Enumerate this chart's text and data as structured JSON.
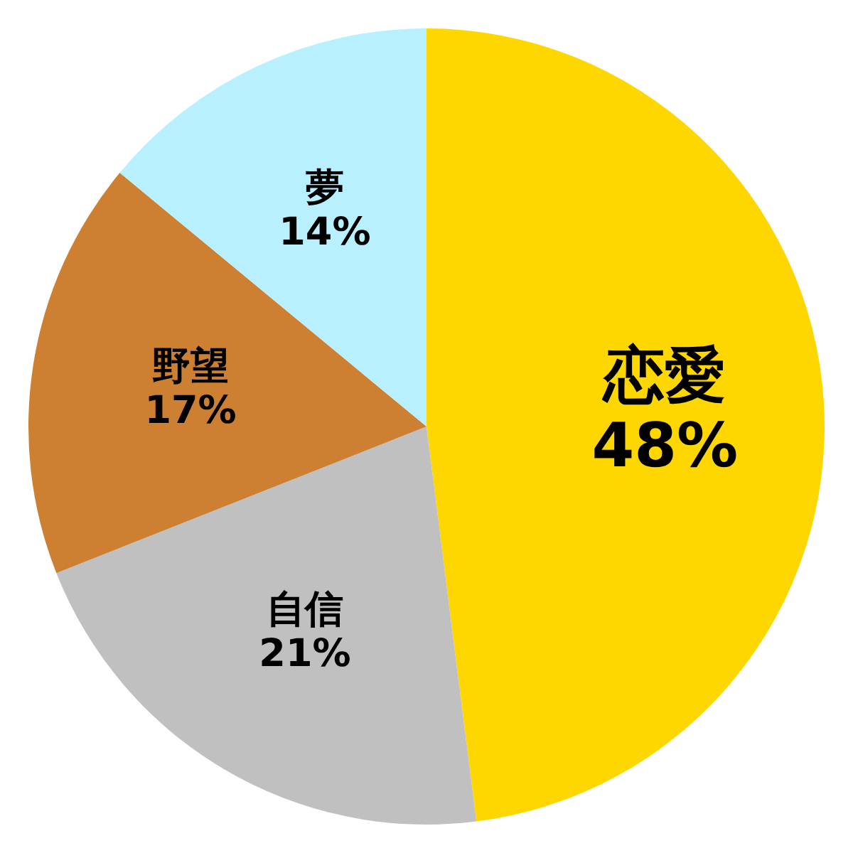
{
  "chart_data": {
    "type": "pie",
    "categories": [
      "恋愛",
      "自信",
      "野望",
      "夢"
    ],
    "values": [
      48,
      21,
      17,
      14
    ],
    "value_labels": [
      "48%",
      "21%",
      "17%",
      "14%"
    ],
    "colors": [
      "#ffd700",
      "#c0c0c0",
      "#cd7f32",
      "#b8f0ff"
    ]
  }
}
